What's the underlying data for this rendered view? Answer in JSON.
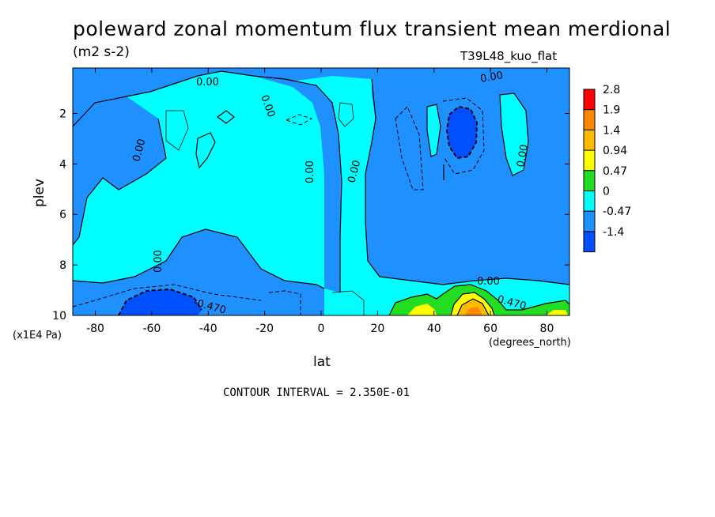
{
  "chart_data": {
    "type": "heatmap",
    "title": "poleward zonal momentum flux transient mean merdional",
    "units": "(m2 s-2)",
    "run_label": "T39L48_kuo_flat",
    "xlabel": "lat",
    "x_units": "(degrees_north)",
    "ylabel": "plev",
    "y_units": "(x1E4 Pa)",
    "xlim": [
      -88,
      88
    ],
    "ylim": [
      10,
      0.2
    ],
    "x_ticks": [
      -80,
      -60,
      -40,
      -20,
      0,
      20,
      40,
      60,
      80
    ],
    "x_tick_labels": [
      "-80",
      "-60",
      "-40",
      "-20",
      "0",
      "20",
      "40",
      "60",
      "80"
    ],
    "y_ticks": [
      2,
      4,
      6,
      8,
      10
    ],
    "y_tick_labels": [
      "2",
      "4",
      "6",
      "8",
      "10"
    ],
    "contour_labels": [
      "0.00",
      "0.00",
      "0.00",
      "0.00",
      "0.00",
      "0.00",
      "0.00",
      "0.00",
      "-0.470",
      "0.470"
    ],
    "colorbar": {
      "levels": [
        "2.8",
        "1.9",
        "1.4",
        "0.94",
        "0.47",
        "0",
        "-0.47",
        "-1.4"
      ],
      "colors": [
        "#ff0000",
        "#ff8800",
        "#ffbb00",
        "#ffff00",
        "#22dd22",
        "#00ffff",
        "#1e90ff",
        "#0050ff"
      ]
    },
    "contour_interval_text": "CONTOUR INTERVAL = 2.350E-01"
  }
}
